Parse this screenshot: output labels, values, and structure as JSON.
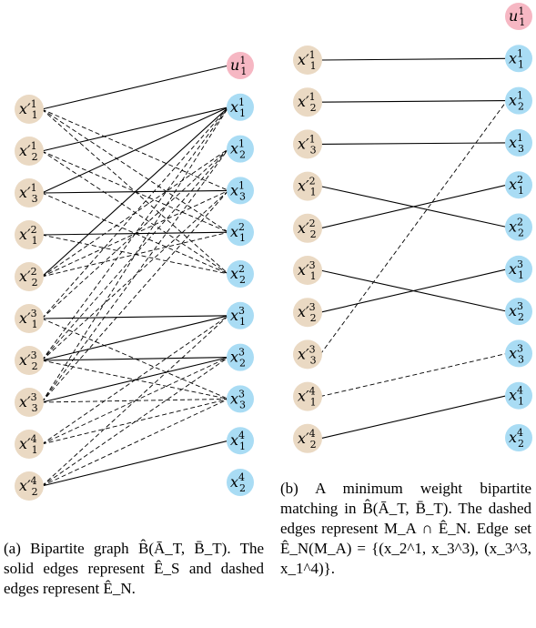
{
  "colors": {
    "x_node": "#ead9c3",
    "u_node": "#f6b7c3",
    "y_node": "#a9dcf4",
    "edge": "#000000"
  },
  "graph_a": {
    "left_nodes": [
      {
        "base": "x′",
        "sup": "1",
        "sub": "1"
      },
      {
        "base": "x′",
        "sup": "1",
        "sub": "2"
      },
      {
        "base": "x′",
        "sup": "1",
        "sub": "3"
      },
      {
        "base": "x′",
        "sup": "2",
        "sub": "1"
      },
      {
        "base": "x′",
        "sup": "2",
        "sub": "2"
      },
      {
        "base": "x′",
        "sup": "3",
        "sub": "1"
      },
      {
        "base": "x′",
        "sup": "3",
        "sub": "2"
      },
      {
        "base": "x′",
        "sup": "3",
        "sub": "3"
      },
      {
        "base": "x′",
        "sup": "4",
        "sub": "1"
      },
      {
        "base": "x′",
        "sup": "4",
        "sub": "2"
      }
    ],
    "right_nodes": [
      {
        "base": "u",
        "sup": "1",
        "sub": "1",
        "kind": "u"
      },
      {
        "base": "x",
        "sup": "1",
        "sub": "1",
        "kind": "y"
      },
      {
        "base": "x",
        "sup": "1",
        "sub": "2",
        "kind": "y"
      },
      {
        "base": "x",
        "sup": "1",
        "sub": "3",
        "kind": "y"
      },
      {
        "base": "x",
        "sup": "2",
        "sub": "1",
        "kind": "y"
      },
      {
        "base": "x",
        "sup": "2",
        "sub": "2",
        "kind": "y"
      },
      {
        "base": "x",
        "sup": "3",
        "sub": "1",
        "kind": "y"
      },
      {
        "base": "x",
        "sup": "3",
        "sub": "2",
        "kind": "y"
      },
      {
        "base": "x",
        "sup": "3",
        "sub": "3",
        "kind": "y"
      },
      {
        "base": "x",
        "sup": "4",
        "sub": "1",
        "kind": "y"
      },
      {
        "base": "x",
        "sup": "4",
        "sub": "2",
        "kind": "y"
      }
    ],
    "solid_edges": [
      [
        0,
        0
      ],
      [
        1,
        1
      ],
      [
        2,
        1
      ],
      [
        2,
        3
      ],
      [
        3,
        4
      ],
      [
        4,
        1
      ],
      [
        5,
        6
      ],
      [
        6,
        6
      ],
      [
        6,
        7
      ],
      [
        7,
        7
      ],
      [
        9,
        9
      ]
    ],
    "dashed_edges": [
      [
        0,
        3
      ],
      [
        0,
        4
      ],
      [
        0,
        5
      ],
      [
        1,
        4
      ],
      [
        1,
        5
      ],
      [
        2,
        5
      ],
      [
        3,
        5
      ],
      [
        4,
        2
      ],
      [
        4,
        3
      ],
      [
        4,
        4
      ],
      [
        5,
        1
      ],
      [
        5,
        2
      ],
      [
        5,
        8
      ],
      [
        6,
        1
      ],
      [
        6,
        2
      ],
      [
        6,
        3
      ],
      [
        6,
        8
      ],
      [
        7,
        1
      ],
      [
        7,
        2
      ],
      [
        7,
        3
      ],
      [
        7,
        8
      ],
      [
        8,
        6
      ],
      [
        8,
        7
      ],
      [
        8,
        8
      ],
      [
        9,
        6
      ],
      [
        9,
        7
      ],
      [
        9,
        8
      ]
    ]
  },
  "graph_b": {
    "left_nodes": [
      {
        "base": "x′",
        "sup": "1",
        "sub": "1"
      },
      {
        "base": "x′",
        "sup": "1",
        "sub": "2"
      },
      {
        "base": "x′",
        "sup": "1",
        "sub": "3"
      },
      {
        "base": "x′",
        "sup": "2",
        "sub": "1"
      },
      {
        "base": "x′",
        "sup": "2",
        "sub": "2"
      },
      {
        "base": "x′",
        "sup": "3",
        "sub": "1"
      },
      {
        "base": "x′",
        "sup": "3",
        "sub": "2"
      },
      {
        "base": "x′",
        "sup": "3",
        "sub": "3"
      },
      {
        "base": "x′",
        "sup": "4",
        "sub": "1"
      },
      {
        "base": "x′",
        "sup": "4",
        "sub": "2"
      }
    ],
    "right_nodes": [
      {
        "base": "u",
        "sup": "1",
        "sub": "1",
        "kind": "u"
      },
      {
        "base": "x",
        "sup": "1",
        "sub": "1",
        "kind": "y"
      },
      {
        "base": "x",
        "sup": "1",
        "sub": "2",
        "kind": "y"
      },
      {
        "base": "x",
        "sup": "1",
        "sub": "3",
        "kind": "y"
      },
      {
        "base": "x",
        "sup": "2",
        "sub": "1",
        "kind": "y"
      },
      {
        "base": "x",
        "sup": "2",
        "sub": "2",
        "kind": "y"
      },
      {
        "base": "x",
        "sup": "3",
        "sub": "1",
        "kind": "y"
      },
      {
        "base": "x",
        "sup": "3",
        "sub": "2",
        "kind": "y"
      },
      {
        "base": "x",
        "sup": "3",
        "sub": "3",
        "kind": "y"
      },
      {
        "base": "x",
        "sup": "4",
        "sub": "1",
        "kind": "y"
      },
      {
        "base": "x",
        "sup": "4",
        "sub": "2",
        "kind": "y"
      }
    ],
    "solid_edges": [
      [
        0,
        1
      ],
      [
        1,
        2
      ],
      [
        2,
        3
      ],
      [
        3,
        5
      ],
      [
        4,
        4
      ],
      [
        5,
        7
      ],
      [
        6,
        6
      ],
      [
        9,
        9
      ]
    ],
    "dashed_edges": [
      [
        7,
        2
      ],
      [
        8,
        8
      ]
    ]
  },
  "captions": {
    "a": "(a) Bipartite graph B̂(Ā_T, B̄_T). The solid edges represent Ê_S and dashed edges represent Ê_N.",
    "b": "(b) A minimum weight bipartite matching in B̂(Ā_T, B̄_T). The dashed edges represent M_A ∩ Ê_N. Edge set Ê_N(M_A) = {(x_2^1, x_3^3), (x_3^3, x_1^4)}."
  }
}
